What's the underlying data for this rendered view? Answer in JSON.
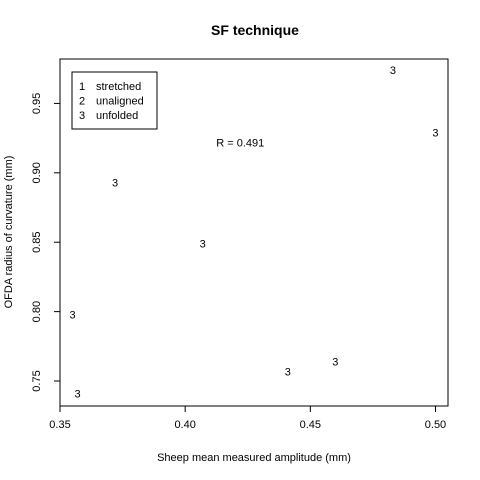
{
  "chart_data": {
    "type": "scatter",
    "title": "SF technique",
    "xlabel": "Sheep mean measured amplitude (mm)",
    "ylabel": "OFDA radius of curvature (mm)",
    "xlim": [
      0.35,
      0.505
    ],
    "ylim": [
      0.732,
      0.982
    ],
    "xticks": [
      0.35,
      0.4,
      0.45,
      0.5
    ],
    "xtick_labels": [
      "0.35",
      "0.40",
      "0.45",
      "0.50"
    ],
    "yticks": [
      0.75,
      0.8,
      0.85,
      0.9,
      0.95
    ],
    "ytick_labels": [
      "0.75",
      "0.80",
      "0.85",
      "0.90",
      "0.95"
    ],
    "grid": false,
    "legend": {
      "placement": "top-left",
      "entries": [
        {
          "symbol": "1",
          "label": "stretched"
        },
        {
          "symbol": "2",
          "label": "unaligned"
        },
        {
          "symbol": "3",
          "label": "unfolded"
        }
      ]
    },
    "annotation": "R = 0.491",
    "annotation_at": {
      "x": 0.422,
      "y": 0.922
    },
    "series": [
      {
        "name": "unfolded",
        "marker": "3",
        "points": [
          {
            "x": 0.483,
            "y": 0.974
          },
          {
            "x": 0.5,
            "y": 0.929
          },
          {
            "x": 0.372,
            "y": 0.893
          },
          {
            "x": 0.407,
            "y": 0.849
          },
          {
            "x": 0.355,
            "y": 0.798
          },
          {
            "x": 0.46,
            "y": 0.764
          },
          {
            "x": 0.441,
            "y": 0.757
          },
          {
            "x": 0.357,
            "y": 0.741
          }
        ]
      }
    ]
  }
}
